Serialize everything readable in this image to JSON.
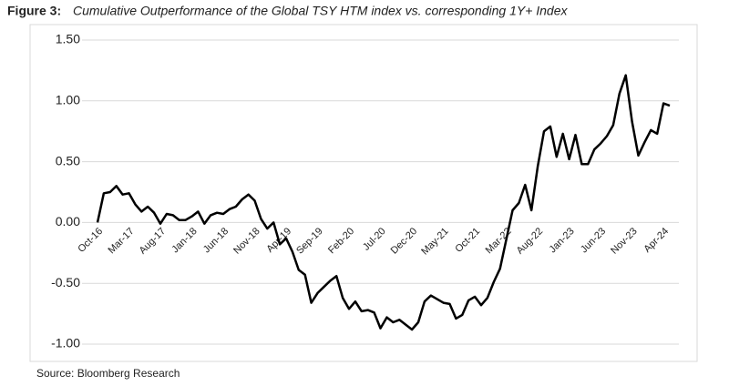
{
  "chart_data": {
    "type": "line",
    "title_label": "Figure 3:",
    "title": "Cumulative Outperformance of the Global TSY HTM index vs. corresponding 1Y+ Index",
    "source": "Source: Bloomberg Research",
    "categories": [
      "Oct-16",
      null,
      null,
      null,
      null,
      "Mar-17",
      null,
      null,
      null,
      null,
      "Aug-17",
      null,
      null,
      null,
      null,
      "Jan-18",
      null,
      null,
      null,
      null,
      "Jun-18",
      null,
      null,
      null,
      null,
      "Nov-18",
      null,
      null,
      null,
      null,
      "Apr-19",
      null,
      null,
      null,
      null,
      "Sep-19",
      null,
      null,
      null,
      null,
      "Feb-20",
      null,
      null,
      null,
      null,
      "Jul-20",
      null,
      null,
      null,
      null,
      "Dec-20",
      null,
      null,
      null,
      null,
      "May-21",
      null,
      null,
      null,
      null,
      "Oct-21",
      null,
      null,
      null,
      null,
      "Mar-22",
      null,
      null,
      null,
      null,
      "Aug-22",
      null,
      null,
      null,
      null,
      "Jan-23",
      null,
      null,
      null,
      null,
      "Jun-23",
      null,
      null,
      null,
      null,
      "Nov-23",
      null,
      null,
      null,
      null,
      "Apr-24",
      null
    ],
    "series": [
      {
        "name": null,
        "color": "#000000",
        "values": [
          0.0,
          0.24,
          0.25,
          0.3,
          0.23,
          0.24,
          0.15,
          0.09,
          0.13,
          0.08,
          -0.01,
          0.07,
          0.06,
          0.02,
          0.02,
          0.05,
          0.09,
          -0.01,
          0.06,
          0.08,
          0.07,
          0.11,
          0.13,
          0.19,
          0.23,
          0.18,
          0.03,
          -0.05,
          0.0,
          -0.18,
          -0.13,
          -0.24,
          -0.39,
          -0.43,
          -0.66,
          -0.58,
          -0.53,
          -0.48,
          -0.44,
          -0.62,
          -0.71,
          -0.65,
          -0.73,
          -0.72,
          -0.74,
          -0.87,
          -0.78,
          -0.82,
          -0.8,
          -0.84,
          -0.88,
          -0.82,
          -0.65,
          -0.6,
          -0.63,
          -0.66,
          -0.67,
          -0.79,
          -0.76,
          -0.64,
          -0.61,
          -0.68,
          -0.62,
          -0.49,
          -0.38,
          -0.14,
          0.1,
          0.16,
          0.31,
          0.1,
          0.46,
          0.75,
          0.79,
          0.54,
          0.73,
          0.52,
          0.72,
          0.48,
          0.48,
          0.6,
          0.65,
          0.71,
          0.8,
          1.06,
          1.21,
          0.83,
          0.55,
          0.66,
          0.76,
          0.73,
          0.98,
          0.96
        ]
      }
    ],
    "ylim": [
      -1.1,
      1.5
    ],
    "yticks": [
      {
        "value": -1,
        "label": "-1.00"
      },
      {
        "value": -0.5,
        "label": "-0.50"
      },
      {
        "value": 0,
        "label": "0.00"
      },
      {
        "value": 0.5,
        "label": "0.50"
      },
      {
        "value": 1,
        "label": "1.00"
      },
      {
        "value": 1.5,
        "label": "1.50"
      }
    ],
    "grid": true
  }
}
